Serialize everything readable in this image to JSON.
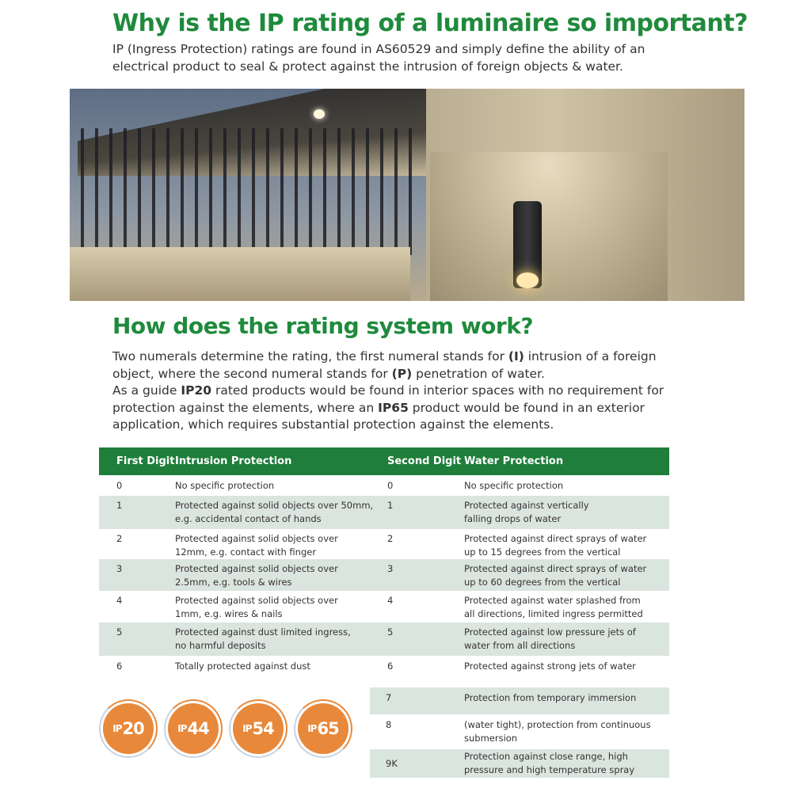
{
  "heading1": "Why is the IP rating of a luminaire so important?",
  "intro": [
    "IP (Ingress Protection) ratings are found in AS60529 and simply define the ability of an",
    "electrical product to seal & protect against the intrusion of foreign objects & water."
  ],
  "heading2": "How does the rating system work?",
  "body": {
    "l1a": "Two numerals determine the rating, the first numeral stands for ",
    "l1b": "(I)",
    "l1c": " intrusion of a foreign",
    "l2a": "object, where the second numeral stands for ",
    "l2b": "(P)",
    "l2c": " penetration of water.",
    "l3a": "As a guide ",
    "l3b": "IP20",
    "l3c": " rated products would be found in interior spaces with no requirement for",
    "l4a": "protection against the elements, where an ",
    "l4b": "IP65",
    "l4c": " product would be found in an exterior",
    "l5": "application, which requires substantial protection against the elements."
  },
  "table": {
    "headers": [
      "First Digit",
      "Intrusion Protection",
      "Second Digit",
      "Water Protection"
    ],
    "rows": [
      [
        "0",
        "No specific protection",
        "0",
        "No specific protection"
      ],
      [
        "1",
        "Protected against solid objects over 50mm,\ne.g. accidental contact of hands",
        "1",
        "Protected against vertically\nfalling drops of water"
      ],
      [
        "2",
        "Protected against solid objects over\n12mm, e.g. contact with finger",
        "2",
        "Protected against direct sprays of water\nup to 15 degrees from the vertical"
      ],
      [
        "3",
        "Protected against solid objects over\n2.5mm, e.g. tools & wires",
        "3",
        "Protected against direct sprays of water\nup to 60 degrees from the vertical"
      ],
      [
        "4",
        "Protected against solid objects over\n1mm, e.g. wires & nails",
        "4",
        "Protected against water splashed from\nall directions, limited ingress permitted"
      ],
      [
        "5",
        "Protected against dust limited ingress,\nno harmful deposits",
        "5",
        "Protected against low pressure jets of\nwater from all directions"
      ],
      [
        "6",
        "Totally protected against dust",
        "6",
        "Protected against strong jets of water"
      ]
    ],
    "extra_rows": [
      [
        "7",
        "Protection from temporary immersion"
      ],
      [
        "8",
        "(water tight), protection from continuous\nsubmersion"
      ],
      [
        "9K",
        "Protection against close range, high\npressure and high temperature spray"
      ]
    ]
  },
  "badges": [
    {
      "prefix": "IP",
      "num": "20"
    },
    {
      "prefix": "IP",
      "num": "44"
    },
    {
      "prefix": "IP",
      "num": "54"
    },
    {
      "prefix": "IP",
      "num": "65"
    }
  ],
  "colors": {
    "green": "#1f8a3c",
    "header": "#1e7e3a",
    "stripe": "#dbe5df",
    "badge": "#e8883a"
  }
}
